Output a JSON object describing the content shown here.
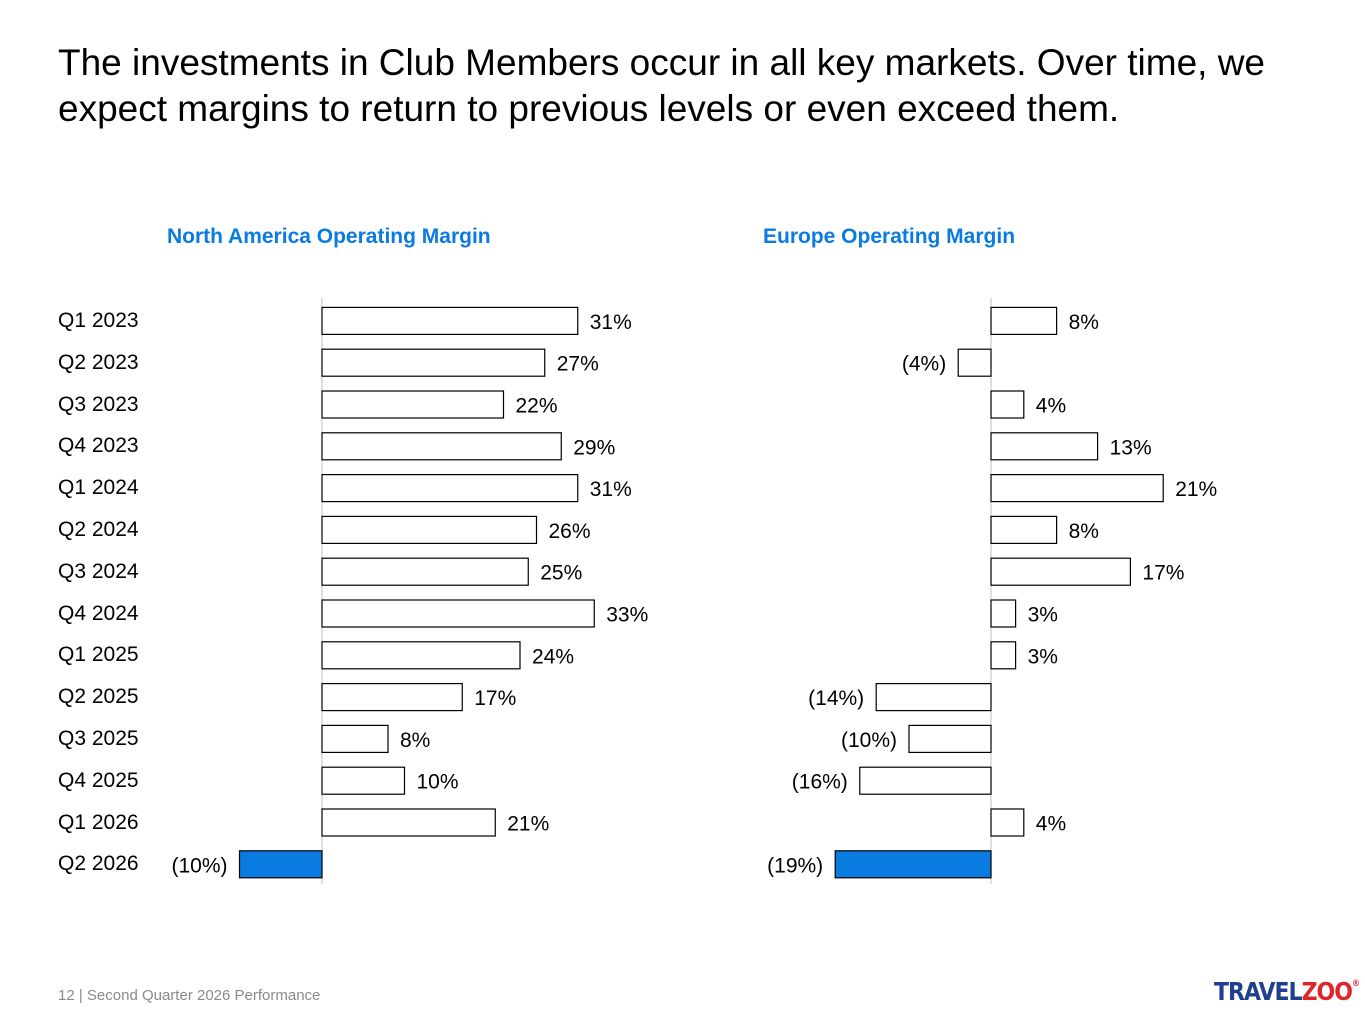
{
  "headline": "The investments in Club Members occur in all key markets. Over time, we expect margins to return to previous levels or even exceed them.",
  "footer": "12 | Second Quarter 2026 Performance",
  "logo": {
    "text_left": "TRAVEL",
    "text_right": "ZOO",
    "reg": "®"
  },
  "colors": {
    "accent": "#0a7be0",
    "highlight_bar": "#0a7be0",
    "bar_fill": "#ffffff",
    "bar_stroke": "#000000"
  },
  "chart_data": [
    {
      "type": "bar",
      "orientation": "horizontal",
      "title": "North America Operating Margin",
      "categories": [
        "Q1 2023",
        "Q2 2023",
        "Q3 2023",
        "Q4 2023",
        "Q1 2024",
        "Q2 2024",
        "Q3 2024",
        "Q4 2024",
        "Q1 2025",
        "Q2 2025",
        "Q3 2025",
        "Q4 2025",
        "Q1 2026",
        "Q2 2026"
      ],
      "values": [
        31,
        27,
        22,
        29,
        31,
        26,
        25,
        33,
        24,
        17,
        8,
        10,
        21,
        -10
      ],
      "data_labels": [
        "31%",
        "27%",
        "22%",
        "29%",
        "31%",
        "26%",
        "25%",
        "33%",
        "24%",
        "17%",
        "8%",
        "10%",
        "21%",
        "(10%)"
      ],
      "highlight_index": 13,
      "unit": "%"
    },
    {
      "type": "bar",
      "orientation": "horizontal",
      "title": "Europe Operating Margin",
      "categories": [
        "Q1 2023",
        "Q2 2023",
        "Q3 2023",
        "Q4 2023",
        "Q1 2024",
        "Q2 2024",
        "Q3 2024",
        "Q4 2024",
        "Q1 2025",
        "Q2 2025",
        "Q3 2025",
        "Q4 2025",
        "Q1 2026",
        "Q2 2026"
      ],
      "values": [
        8,
        -4,
        4,
        13,
        21,
        8,
        17,
        3,
        3,
        -14,
        -10,
        -16,
        4,
        -19
      ],
      "data_labels": [
        "8%",
        "(4%)",
        "4%",
        "13%",
        "21%",
        "8%",
        "17%",
        "3%",
        "3%",
        "(14%)",
        "(10%)",
        "(16%)",
        "4%",
        "(19%)"
      ],
      "highlight_index": 13,
      "unit": "%"
    }
  ]
}
